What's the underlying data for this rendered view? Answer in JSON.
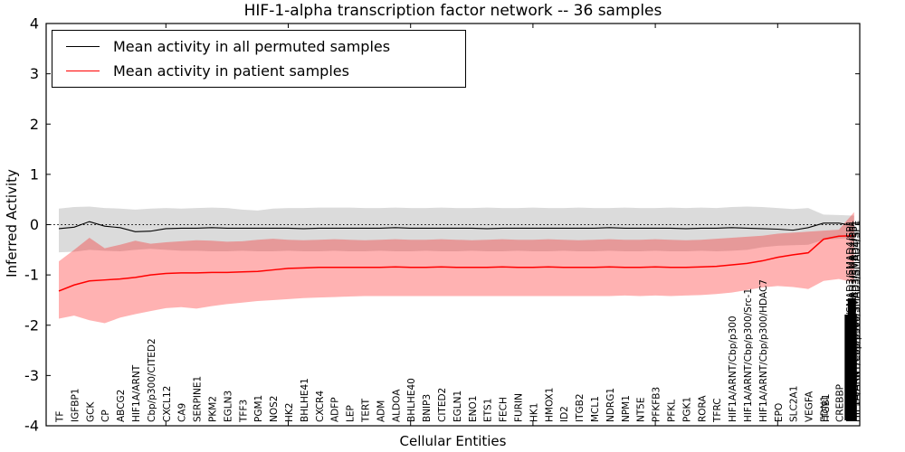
{
  "title": "HIF-1-alpha transcription factor network -- 36 samples",
  "axes": {
    "ylabel": "Inferred Activity",
    "xlabel": "Cellular Entities",
    "ytick_labels": [
      "4",
      "3",
      "2",
      "1",
      "0",
      "-1",
      "-2",
      "-3",
      "-4"
    ],
    "ytick_values": [
      4,
      3,
      2,
      1,
      0,
      -1,
      -2,
      -3,
      -4
    ],
    "ylim": [
      -4,
      4
    ],
    "zero_reference_line": "dotted"
  },
  "legend": {
    "entries": [
      {
        "label": "Mean activity in all permuted samples",
        "color": "#000000"
      },
      {
        "label": "Mean activity in patient samples",
        "color": "#ff0000"
      }
    ],
    "position": "upper left"
  },
  "colors": {
    "permuted_line": "#000000",
    "patient_line": "#ff0000",
    "permuted_band": "rgba(0,0,0,0.14)",
    "patient_band": "rgba(255,0,0,0.30)",
    "zero_line": "#000000",
    "axis": "#000000",
    "background": "#ffffff"
  },
  "chart_data": {
    "type": "line",
    "title": "HIF-1-alpha transcription factor network -- 36 samples",
    "xlabel": "Cellular Entities",
    "ylabel": "Inferred Activity",
    "ylim": [
      -4,
      4
    ],
    "grid": false,
    "legend_position": "upper left",
    "categories": [
      "TF",
      "IGFBP1",
      "GCK",
      "CP",
      "ABCG2",
      "HIF1A/ARNT",
      "Cbp/p300/CITED2",
      "CXCL12",
      "CA9",
      "SERPINE1",
      "PKM2",
      "EGLN3",
      "TFF3",
      "PGM1",
      "NOS2",
      "HK2",
      "BHLHE41",
      "CXCR4",
      "ADFP",
      "LEP",
      "TERT",
      "ADM",
      "ALDOA",
      "BHLHE40",
      "BNIP3",
      "CITED2",
      "EGLN1",
      "ENO1",
      "ETS1",
      "FECH",
      "FURIN",
      "HK1",
      "HMOX1",
      "ID2",
      "ITGB2",
      "MCL1",
      "NDRG1",
      "NPM1",
      "NT5E",
      "PFKFB3",
      "PFKL",
      "PGK1",
      "RORA",
      "TFRC",
      "HIF1A/ARNT/Cbp/p300",
      "HIF1A/ARNT/Cbp/p300/Src-1",
      "HIF1A/ARNT/Cbp/p300/HDAC7",
      "EPO",
      "SLC2A1",
      "VEGFA",
      "EDN1",
      "CREBBP",
      "HIF1A/ARNT/Cbp/p300/SMAD3/SMAD4/SP1"
    ],
    "overlapping_labels": [
      {
        "index": 50,
        "labels": [
          "EDN1",
          "ITGB1"
        ],
        "illegible_cluster": false
      },
      {
        "index": 52,
        "labels": [
          "HIF1A/ARNT/Cbp/p300/SMAD3/SMAD4/SP1"
        ],
        "illegible_cluster": true
      }
    ],
    "xtick_indices": [
      7,
      15,
      23,
      31,
      39,
      47
    ],
    "series": [
      {
        "name": "Mean activity in all permuted samples",
        "color": "#000000",
        "values": [
          -0.08,
          -0.05,
          0.06,
          -0.03,
          -0.06,
          -0.14,
          -0.13,
          -0.08,
          -0.07,
          -0.07,
          -0.06,
          -0.07,
          -0.07,
          -0.07,
          -0.07,
          -0.07,
          -0.08,
          -0.07,
          -0.07,
          -0.07,
          -0.07,
          -0.07,
          -0.06,
          -0.07,
          -0.07,
          -0.07,
          -0.07,
          -0.07,
          -0.08,
          -0.07,
          -0.07,
          -0.07,
          -0.07,
          -0.07,
          -0.07,
          -0.07,
          -0.06,
          -0.07,
          -0.07,
          -0.07,
          -0.07,
          -0.08,
          -0.07,
          -0.07,
          -0.06,
          -0.07,
          -0.08,
          -0.09,
          -0.11,
          -0.06,
          0.03,
          0.03,
          -0.02
        ]
      },
      {
        "name": "Mean activity in patient samples",
        "color": "#ff0000",
        "values": [
          -1.32,
          -1.2,
          -1.12,
          -1.1,
          -1.08,
          -1.05,
          -1.0,
          -0.97,
          -0.96,
          -0.96,
          -0.95,
          -0.95,
          -0.94,
          -0.93,
          -0.9,
          -0.87,
          -0.86,
          -0.85,
          -0.85,
          -0.85,
          -0.85,
          -0.85,
          -0.84,
          -0.85,
          -0.85,
          -0.84,
          -0.85,
          -0.85,
          -0.85,
          -0.84,
          -0.85,
          -0.85,
          -0.84,
          -0.85,
          -0.85,
          -0.85,
          -0.84,
          -0.85,
          -0.85,
          -0.84,
          -0.85,
          -0.85,
          -0.84,
          -0.83,
          -0.8,
          -0.77,
          -0.72,
          -0.65,
          -0.6,
          -0.56,
          -0.29,
          -0.23,
          -0.22
        ]
      }
    ],
    "bands": [
      {
        "name": "permuted samples range",
        "color": "rgba(0,0,0,0.14)",
        "upper": [
          0.32,
          0.35,
          0.36,
          0.33,
          0.32,
          0.3,
          0.32,
          0.33,
          0.32,
          0.33,
          0.34,
          0.33,
          0.3,
          0.28,
          0.32,
          0.33,
          0.33,
          0.34,
          0.34,
          0.34,
          0.33,
          0.33,
          0.34,
          0.33,
          0.33,
          0.34,
          0.33,
          0.33,
          0.34,
          0.33,
          0.33,
          0.34,
          0.33,
          0.33,
          0.34,
          0.33,
          0.33,
          0.34,
          0.33,
          0.33,
          0.34,
          0.33,
          0.34,
          0.33,
          0.35,
          0.36,
          0.35,
          0.33,
          0.31,
          0.33,
          0.2,
          0.19,
          0.18
        ],
        "lower": [
          -0.55,
          -0.54,
          -0.5,
          -0.52,
          -0.53,
          -0.5,
          -0.48,
          -0.5,
          -0.52,
          -0.52,
          -0.53,
          -0.53,
          -0.52,
          -0.53,
          -0.53,
          -0.52,
          -0.53,
          -0.53,
          -0.52,
          -0.53,
          -0.53,
          -0.52,
          -0.53,
          -0.53,
          -0.52,
          -0.53,
          -0.53,
          -0.52,
          -0.53,
          -0.53,
          -0.52,
          -0.53,
          -0.53,
          -0.52,
          -0.53,
          -0.53,
          -0.52,
          -0.53,
          -0.53,
          -0.52,
          -0.53,
          -0.53,
          -0.52,
          -0.53,
          -0.52,
          -0.5,
          -0.45,
          -0.42,
          -0.41,
          -0.4,
          -0.3,
          -0.28,
          -0.26
        ]
      },
      {
        "name": "patient samples range",
        "color": "rgba(255,0,0,0.30)",
        "upper": [
          -0.73,
          -0.5,
          -0.26,
          -0.47,
          -0.4,
          -0.32,
          -0.38,
          -0.35,
          -0.33,
          -0.31,
          -0.32,
          -0.34,
          -0.33,
          -0.3,
          -0.28,
          -0.3,
          -0.31,
          -0.3,
          -0.29,
          -0.3,
          -0.31,
          -0.3,
          -0.29,
          -0.3,
          -0.3,
          -0.29,
          -0.3,
          -0.31,
          -0.3,
          -0.29,
          -0.3,
          -0.3,
          -0.29,
          -0.3,
          -0.31,
          -0.3,
          -0.29,
          -0.3,
          -0.3,
          -0.29,
          -0.3,
          -0.31,
          -0.3,
          -0.28,
          -0.26,
          -0.24,
          -0.22,
          -0.18,
          -0.16,
          -0.14,
          -0.12,
          -0.1,
          0.25
        ],
        "lower": [
          -1.87,
          -1.81,
          -1.9,
          -1.96,
          -1.85,
          -1.78,
          -1.72,
          -1.66,
          -1.64,
          -1.67,
          -1.62,
          -1.58,
          -1.55,
          -1.52,
          -1.5,
          -1.48,
          -1.46,
          -1.45,
          -1.44,
          -1.43,
          -1.42,
          -1.42,
          -1.42,
          -1.42,
          -1.42,
          -1.42,
          -1.42,
          -1.42,
          -1.42,
          -1.42,
          -1.42,
          -1.42,
          -1.42,
          -1.42,
          -1.42,
          -1.42,
          -1.42,
          -1.41,
          -1.42,
          -1.41,
          -1.42,
          -1.41,
          -1.4,
          -1.38,
          -1.35,
          -1.3,
          -1.25,
          -1.22,
          -1.24,
          -1.28,
          -1.12,
          -1.08,
          -1.15
        ]
      }
    ]
  }
}
